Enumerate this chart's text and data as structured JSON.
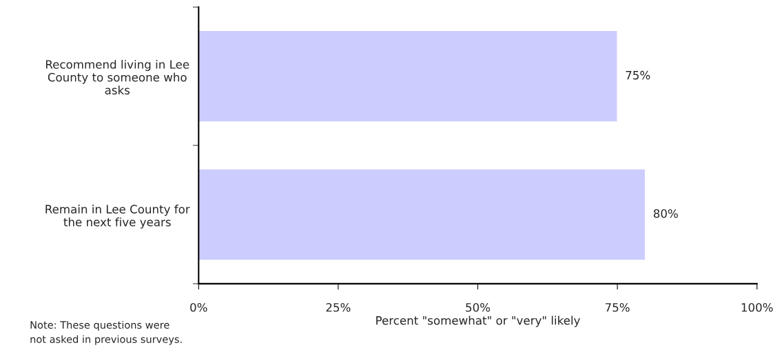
{
  "chart_data": {
    "type": "bar",
    "orientation": "horizontal",
    "categories": [
      "Recommend living in Lee\nCounty to someone who\nasks",
      "Remain in Lee County for\nthe next five years"
    ],
    "values": [
      75,
      80
    ],
    "value_labels": [
      "75%",
      "80%"
    ],
    "color": "#ccccff",
    "xlabel": "Percent \"somewhat\" or \"very\" likely",
    "xlim": [
      0,
      100
    ],
    "xticks": [
      {
        "value": 0,
        "label": "0%"
      },
      {
        "value": 25,
        "label": "25%"
      },
      {
        "value": 50,
        "label": "50%"
      },
      {
        "value": 75,
        "label": "75%"
      },
      {
        "value": 100,
        "label": "100%"
      }
    ],
    "annotations": [
      "Note: These questions were\nnot asked in previous surveys."
    ],
    "grid": false,
    "legend": false
  }
}
